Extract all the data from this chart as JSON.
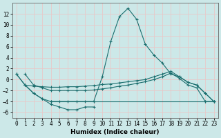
{
  "xlabel": "Humidex (Indice chaleur)",
  "bg_color": "#cce8e8",
  "grid_color": "#e8c8c8",
  "line_color": "#1a6e6e",
  "xlim": [
    -0.5,
    23.5
  ],
  "ylim": [
    -7,
    14
  ],
  "yticks": [
    -6,
    -4,
    -2,
    0,
    2,
    4,
    6,
    8,
    10,
    12
  ],
  "xticks": [
    0,
    1,
    2,
    3,
    4,
    5,
    6,
    7,
    8,
    9,
    10,
    11,
    12,
    13,
    14,
    15,
    16,
    17,
    18,
    19,
    20,
    21,
    22,
    23
  ],
  "series": [
    {
      "x": [
        0,
        1,
        2,
        3,
        4,
        5,
        6,
        7,
        8,
        9,
        10,
        11,
        12,
        13,
        14,
        15,
        16,
        17,
        18,
        19,
        20,
        21,
        22,
        23
      ],
      "y": [
        1,
        -1,
        -2.5,
        -3.5,
        -4,
        -4,
        -4,
        -4,
        -4,
        -4,
        0.5,
        7,
        11.5,
        13,
        11,
        6.5,
        4.5,
        3,
        1,
        0.5,
        -0.5,
        -1,
        -2.5,
        -4
      ]
    },
    {
      "x": [
        0,
        1,
        2,
        3,
        4,
        5,
        6,
        7,
        8,
        9,
        10,
        11,
        12,
        13,
        14,
        15,
        16,
        17,
        18,
        19,
        20,
        21,
        22,
        23
      ],
      "y": [
        1,
        -1,
        -1.2,
        -1.3,
        -1.4,
        -1.4,
        -1.3,
        -1.3,
        -1.2,
        -1.1,
        -0.9,
        -0.8,
        -0.6,
        -0.4,
        -0.2,
        0,
        0.5,
        1,
        1.5,
        0.5,
        -0.5,
        -1,
        -2.5,
        -4
      ]
    },
    {
      "x": [
        0,
        1,
        2,
        3,
        4,
        5,
        6,
        7,
        8,
        9,
        10,
        11,
        12,
        13,
        14,
        15,
        16,
        17,
        18,
        19,
        20,
        21,
        22,
        23
      ],
      "y": [
        null,
        1,
        -1,
        -1.5,
        -2,
        -2,
        -2,
        -2,
        -2,
        -1.9,
        -1.7,
        -1.5,
        -1.2,
        -1.0,
        -0.7,
        -0.4,
        0.0,
        0.5,
        1.2,
        0.2,
        -1,
        -1.5,
        -4,
        -4
      ]
    },
    {
      "x": [
        0,
        4,
        9,
        22,
        23
      ],
      "y": [
        null,
        -4,
        -4,
        -4,
        -4
      ]
    },
    {
      "x": [
        1,
        2,
        3,
        4,
        5,
        6,
        7,
        8,
        9
      ],
      "y": [
        -1,
        -2.5,
        -3.5,
        -4.5,
        -5,
        -5.5,
        -5.5,
        -5,
        -5
      ]
    }
  ]
}
